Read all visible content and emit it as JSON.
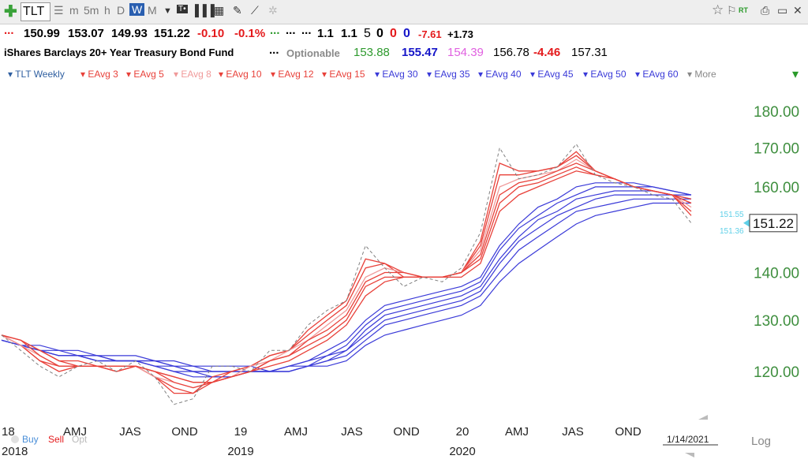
{
  "toolbar": {
    "symbol": "TLT",
    "intervals": [
      "m",
      "5m",
      "h",
      "D",
      "W",
      "M"
    ],
    "active_interval": "W",
    "rt": "RT"
  },
  "quote": {
    "open": "150.99",
    "high": "153.07",
    "low": "149.93",
    "last": "151.22",
    "change": "-0.10",
    "change_pct": "-0.1%",
    "v1": "1.1",
    "v2": "1.1",
    "d1": "5",
    "d2": "0",
    "d3": "0",
    "d4": "0",
    "neg": "-7.61",
    "pos": "+1.73",
    "dots1": "...",
    "dots2": "...",
    "dots3": "...",
    "dots4": "..."
  },
  "info": {
    "name": "iShares Barclays 20+ Year Treasury Bond Fund",
    "dots": "...",
    "optionable": "Optionable",
    "p1": "153.88",
    "p2": "155.47",
    "p3": "154.39",
    "p4": "156.78",
    "p5": "-4.46",
    "p6": "157.31"
  },
  "colors": {
    "red_avg": "#e8413a",
    "light_red_avg": "#f09a9a",
    "blue_avg": "#3a3ad8",
    "price_dash": "#808080",
    "axis_green": "#3f8f3f"
  },
  "legend": {
    "items": [
      {
        "label": "TLT Weekly",
        "color": "#2f5fa0"
      },
      {
        "label": "EAvg 3",
        "color": "#e8413a"
      },
      {
        "label": "EAvg 5",
        "color": "#e8413a"
      },
      {
        "label": "EAvg 8",
        "color": "#f09a9a"
      },
      {
        "label": "EAvg 10",
        "color": "#e8413a"
      },
      {
        "label": "EAvg 12",
        "color": "#e8413a"
      },
      {
        "label": "EAvg 15",
        "color": "#e8413a"
      },
      {
        "label": "EAvg 30",
        "color": "#3a3ad8"
      },
      {
        "label": "EAvg 35",
        "color": "#3a3ad8"
      },
      {
        "label": "EAvg 40",
        "color": "#3a3ad8"
      },
      {
        "label": "EAvg 45",
        "color": "#3a3ad8"
      },
      {
        "label": "EAvg 50",
        "color": "#3a3ad8"
      },
      {
        "label": "EAvg 60",
        "color": "#3a3ad8"
      }
    ],
    "more": "More"
  },
  "chart_data": {
    "type": "line",
    "yscale": "log",
    "ylim": [
      112,
      185
    ],
    "y_ticks": [
      180,
      170,
      160,
      140,
      130,
      120
    ],
    "y_tick_labels": [
      "180.00",
      "170.00",
      "160.00",
      "140.00",
      "130.00",
      "120.00"
    ],
    "last_price_label": "151.22",
    "last_price": 151.22,
    "side_labels": [
      {
        "text": "151.55",
        "value": 151.55
      },
      {
        "text": "151.36",
        "value": 151.36
      }
    ],
    "x_period_labels": [
      "AMJ",
      "JAS",
      "OND",
      "19",
      "AMJ",
      "JAS",
      "OND",
      "20",
      "AMJ",
      "JAS",
      "OND"
    ],
    "x_first_partial": "18",
    "x_year_labels": [
      "2019",
      "2020"
    ],
    "x_cut_year": "2018",
    "date_label": "1/14/2021",
    "log_label": "Log",
    "footer": {
      "buy": "Buy",
      "sell": "Sell",
      "opt": "Opt"
    },
    "price_series": {
      "name": "TLT Weekly",
      "dates": [
        "2018-01",
        "2018-02",
        "2018-03",
        "2018-04",
        "2018-05",
        "2018-06",
        "2018-07",
        "2018-08",
        "2018-09",
        "2018-10",
        "2018-11",
        "2018-12",
        "2019-01",
        "2019-02",
        "2019-03",
        "2019-04",
        "2019-05",
        "2019-06",
        "2019-07",
        "2019-08",
        "2019-09",
        "2019-10",
        "2019-11",
        "2019-12",
        "2020-01",
        "2020-02",
        "2020-03",
        "2020-04",
        "2020-05",
        "2020-06",
        "2020-07",
        "2020-08",
        "2020-09",
        "2020-10",
        "2020-11",
        "2020-12",
        "2021-01"
      ],
      "values": [
        127,
        124,
        121,
        119,
        121,
        122,
        120,
        122,
        119,
        114,
        115,
        121,
        121,
        120,
        124,
        124,
        129,
        132,
        134,
        146,
        141,
        137,
        139,
        138,
        141,
        149,
        170,
        162,
        163,
        165,
        171,
        163,
        161,
        160,
        158,
        157,
        151.22
      ]
    },
    "ema_short": [
      {
        "name": "EAvg 3",
        "values": [
          127,
          125,
          122,
          120,
          121,
          121,
          120,
          121,
          119,
          116,
          116,
          119,
          120,
          121,
          123,
          124,
          128,
          131,
          134,
          143,
          142,
          139,
          139,
          139,
          140,
          147,
          166,
          164,
          164,
          165,
          169,
          164,
          162,
          160,
          159,
          158,
          153
        ]
      },
      {
        "name": "EAvg 5",
        "values": [
          127,
          125,
          122,
          121,
          121,
          121,
          120,
          121,
          119,
          117,
          116,
          118,
          120,
          121,
          123,
          124,
          127,
          130,
          133,
          141,
          142,
          140,
          139,
          139,
          140,
          146,
          163,
          163,
          164,
          165,
          168,
          164,
          162,
          160,
          159,
          158,
          154
        ]
      },
      {
        "name": "EAvg 8",
        "values": [
          127,
          125,
          123,
          121,
          121,
          121,
          120,
          121,
          119,
          118,
          117,
          118,
          119,
          121,
          122,
          124,
          126,
          129,
          132,
          139,
          141,
          140,
          139,
          139,
          140,
          145,
          160,
          162,
          163,
          164,
          167,
          164,
          162,
          160,
          159,
          158,
          155
        ]
      },
      {
        "name": "EAvg 10",
        "values": [
          127,
          126,
          123,
          121,
          121,
          121,
          120,
          121,
          120,
          118,
          117,
          118,
          119,
          120,
          122,
          123,
          126,
          128,
          131,
          138,
          140,
          140,
          139,
          139,
          140,
          144,
          158,
          161,
          162,
          164,
          166,
          164,
          162,
          160,
          159,
          158,
          156
        ]
      },
      {
        "name": "EAvg 12",
        "values": [
          127,
          126,
          124,
          122,
          121,
          121,
          121,
          121,
          120,
          119,
          118,
          118,
          119,
          120,
          122,
          123,
          125,
          127,
          130,
          137,
          139,
          139,
          139,
          139,
          140,
          143,
          156,
          160,
          161,
          163,
          165,
          163,
          162,
          160,
          159,
          158,
          156
        ]
      },
      {
        "name": "EAvg 15",
        "values": [
          127,
          126,
          124,
          122,
          122,
          121,
          121,
          121,
          120,
          119,
          118,
          118,
          119,
          120,
          121,
          122,
          124,
          126,
          129,
          135,
          138,
          139,
          139,
          139,
          139,
          142,
          154,
          158,
          160,
          162,
          164,
          163,
          162,
          160,
          159,
          158,
          157
        ]
      }
    ],
    "ema_long": [
      {
        "name": "EAvg 30",
        "values": [
          126,
          125,
          124,
          123,
          123,
          122,
          122,
          122,
          121,
          120,
          119,
          119,
          119,
          120,
          120,
          121,
          122,
          124,
          126,
          130,
          133,
          134,
          135,
          136,
          137,
          139,
          146,
          151,
          155,
          157,
          160,
          161,
          161,
          161,
          160,
          159,
          158
        ]
      },
      {
        "name": "EAvg 35",
        "values": [
          126,
          125,
          124,
          123,
          123,
          122,
          122,
          122,
          121,
          120,
          120,
          119,
          119,
          120,
          120,
          121,
          122,
          123,
          125,
          129,
          132,
          133,
          134,
          135,
          136,
          138,
          145,
          150,
          153,
          156,
          158,
          160,
          160,
          160,
          160,
          159,
          158
        ]
      },
      {
        "name": "EAvg 40",
        "values": [
          126,
          125,
          124,
          123,
          123,
          122,
          122,
          122,
          121,
          121,
          120,
          120,
          120,
          120,
          120,
          121,
          121,
          123,
          124,
          128,
          131,
          132,
          133,
          134,
          135,
          137,
          143,
          148,
          152,
          154,
          157,
          158,
          159,
          159,
          159,
          158,
          158
        ]
      },
      {
        "name": "EAvg 45",
        "values": [
          126,
          125,
          124,
          123,
          123,
          123,
          122,
          122,
          122,
          121,
          120,
          120,
          120,
          120,
          120,
          120,
          121,
          122,
          124,
          127,
          130,
          131,
          132,
          133,
          134,
          136,
          142,
          147,
          150,
          153,
          155,
          157,
          158,
          158,
          158,
          158,
          157
        ]
      },
      {
        "name": "EAvg 50",
        "values": [
          126,
          125,
          124,
          124,
          123,
          123,
          122,
          122,
          122,
          121,
          121,
          120,
          120,
          120,
          120,
          120,
          121,
          122,
          123,
          126,
          129,
          130,
          131,
          132,
          133,
          135,
          140,
          145,
          148,
          151,
          154,
          155,
          156,
          157,
          157,
          157,
          157
        ]
      },
      {
        "name": "EAvg 60",
        "values": [
          126,
          125,
          125,
          124,
          124,
          123,
          123,
          123,
          122,
          122,
          121,
          121,
          121,
          121,
          120,
          120,
          121,
          121,
          122,
          125,
          127,
          128,
          129,
          130,
          131,
          133,
          138,
          142,
          145,
          148,
          151,
          153,
          154,
          155,
          156,
          156,
          156
        ]
      }
    ]
  }
}
